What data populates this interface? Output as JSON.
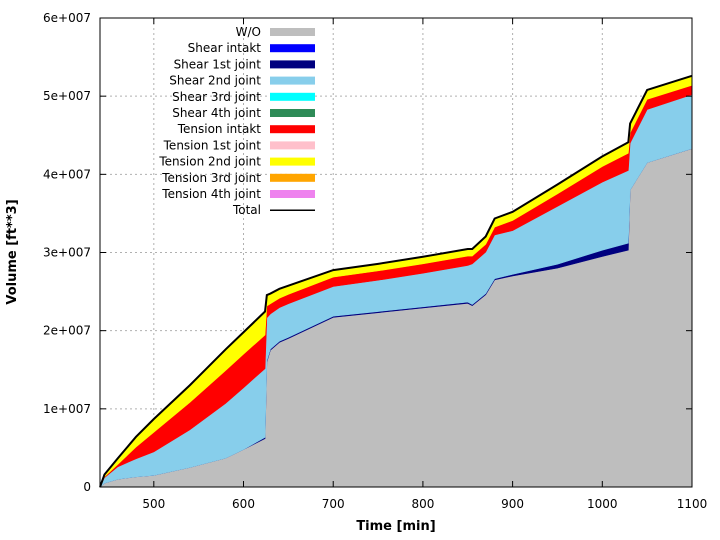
{
  "chart_data": {
    "type": "area",
    "xlabel": "Time  [min]",
    "ylabel": "Volume  [ft**3]",
    "xlim": [
      440,
      1100
    ],
    "ylim": [
      0,
      60000000
    ],
    "x_ticks": [
      500,
      600,
      700,
      800,
      900,
      1000,
      1100
    ],
    "y_ticks": [
      0,
      10000000,
      20000000,
      30000000,
      40000000,
      50000000,
      60000000
    ],
    "y_tick_labels": [
      "0",
      "1e+007",
      "2e+007",
      "3e+007",
      "4e+007",
      "5e+007",
      "6e+007"
    ],
    "grid": true,
    "legend_position": "top-left",
    "x": [
      440,
      445,
      460,
      480,
      500,
      540,
      580,
      600,
      624,
      626,
      630,
      640,
      650,
      700,
      750,
      800,
      850,
      855,
      870,
      880,
      900,
      950,
      1000,
      1029,
      1031,
      1050,
      1100
    ],
    "series": [
      {
        "name": "W/O",
        "color": "#bebebe",
        "values": [
          0,
          500000,
          1000000,
          1300000,
          1500000,
          2500000,
          3700000,
          4800000,
          6200000,
          16000000,
          17500000,
          18500000,
          19000000,
          21700000,
          22300000,
          22900000,
          23500000,
          23200000,
          24600000,
          26500000,
          27000000,
          28000000,
          29500000,
          30300000,
          38000000,
          41500000,
          43300000
        ]
      },
      {
        "name": "Shear intakt",
        "color": "#0000ff",
        "values": [
          0,
          0,
          0,
          0,
          0,
          0,
          0,
          0,
          0,
          0,
          0,
          0,
          0,
          0,
          0,
          0,
          0,
          0,
          0,
          0,
          0,
          0,
          0,
          0,
          0,
          0,
          0
        ]
      },
      {
        "name": "Shear 1st joint",
        "color": "#00007f",
        "values": [
          0,
          0,
          0,
          0,
          0,
          0,
          0,
          0,
          150000,
          150000,
          150000,
          150000,
          150000,
          150000,
          150000,
          150000,
          150000,
          150000,
          150000,
          150000,
          200000,
          500000,
          800000,
          900000,
          0,
          0,
          0
        ]
      },
      {
        "name": "Shear 2nd joint",
        "color": "#87ceeb",
        "values": [
          0,
          700000,
          1600000,
          2300000,
          3000000,
          4800000,
          7000000,
          7900000,
          8800000,
          5500000,
          4500000,
          4300000,
          4300000,
          3800000,
          4000000,
          4300000,
          4700000,
          5200000,
          5300000,
          5600000,
          5600000,
          7400000,
          8700000,
          9300000,
          6000000,
          6800000,
          6900000
        ]
      },
      {
        "name": "Shear 3rd joint",
        "color": "#00ffff",
        "values": [
          0,
          0,
          0,
          0,
          0,
          0,
          0,
          0,
          0,
          0,
          0,
          0,
          0,
          0,
          0,
          0,
          0,
          0,
          0,
          0,
          0,
          0,
          0,
          0,
          0,
          0,
          0
        ]
      },
      {
        "name": "Shear 4th joint",
        "color": "#2e8b57",
        "values": [
          0,
          0,
          0,
          0,
          0,
          0,
          0,
          0,
          0,
          0,
          0,
          0,
          0,
          0,
          0,
          0,
          0,
          0,
          0,
          0,
          0,
          0,
          0,
          0,
          0,
          0,
          0
        ]
      },
      {
        "name": "Tension intakt",
        "color": "#ff0000",
        "values": [
          0,
          100000,
          300000,
          1500000,
          2500000,
          3500000,
          4200000,
          4300000,
          4300000,
          1500000,
          1300000,
          1200000,
          1200000,
          1200000,
          1200000,
          1200000,
          1200000,
          1000000,
          1000000,
          1000000,
          1300000,
          1600000,
          2000000,
          2200000,
          1300000,
          1300000,
          1200000
        ]
      },
      {
        "name": "Tension 1st joint",
        "color": "#ffc0cb",
        "values": [
          0,
          0,
          0,
          0,
          0,
          0,
          0,
          0,
          0,
          0,
          0,
          0,
          0,
          0,
          0,
          0,
          0,
          0,
          0,
          0,
          0,
          0,
          0,
          0,
          0,
          0,
          0
        ]
      },
      {
        "name": "Tension 2nd joint",
        "color": "#ffff00",
        "values": [
          0,
          300000,
          800000,
          1300000,
          1700000,
          2200000,
          2700000,
          2800000,
          3000000,
          1400000,
          1300000,
          1200000,
          1100000,
          900000,
          900000,
          900000,
          900000,
          900000,
          1000000,
          1100000,
          1100000,
          1200000,
          1300000,
          1400000,
          1200000,
          1200000,
          1200000
        ]
      },
      {
        "name": "Tension 3rd joint",
        "color": "#ffa500",
        "values": [
          0,
          0,
          0,
          0,
          0,
          0,
          0,
          0,
          0,
          0,
          0,
          0,
          0,
          0,
          0,
          0,
          0,
          0,
          0,
          0,
          0,
          0,
          0,
          0,
          0,
          0,
          0
        ]
      },
      {
        "name": "Tension 4th joint",
        "color": "#ee82ee",
        "values": [
          0,
          0,
          0,
          0,
          0,
          0,
          0,
          0,
          0,
          0,
          0,
          0,
          0,
          0,
          0,
          0,
          0,
          0,
          0,
          0,
          0,
          0,
          0,
          0,
          0,
          0,
          0
        ]
      }
    ],
    "legend": [
      {
        "name": "W/O",
        "color": "#bebebe",
        "kind": "box"
      },
      {
        "name": "Shear intakt",
        "color": "#0000ff",
        "kind": "box"
      },
      {
        "name": "Shear 1st joint",
        "color": "#00007f",
        "kind": "box"
      },
      {
        "name": "Shear 2nd joint",
        "color": "#87ceeb",
        "kind": "box"
      },
      {
        "name": "Shear 3rd joint",
        "color": "#00ffff",
        "kind": "box"
      },
      {
        "name": "Shear 4th joint",
        "color": "#2e8b57",
        "kind": "box"
      },
      {
        "name": "Tension intakt",
        "color": "#ff0000",
        "kind": "box"
      },
      {
        "name": "Tension 1st joint",
        "color": "#ffc0cb",
        "kind": "box"
      },
      {
        "name": "Tension 2nd joint",
        "color": "#ffff00",
        "kind": "box"
      },
      {
        "name": "Tension 3rd joint",
        "color": "#ffa500",
        "kind": "box"
      },
      {
        "name": "Tension 4th joint",
        "color": "#ee82ee",
        "kind": "box"
      },
      {
        "name": "Total",
        "color": "#000000",
        "kind": "line"
      }
    ],
    "total_series_name": "Total"
  }
}
